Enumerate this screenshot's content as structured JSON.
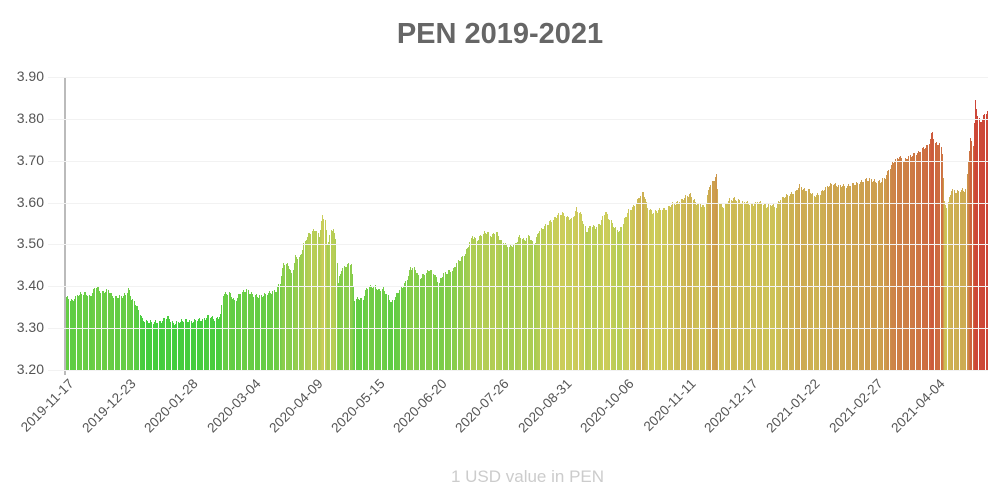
{
  "chart_data": {
    "type": "bar",
    "title": "PEN 2019-2021",
    "xlabel": "1 USD value in PEN",
    "ylabel": "",
    "ylim": [
      3.2,
      3.9
    ],
    "yticks": [
      "3.90",
      "3.80",
      "3.70",
      "3.60",
      "3.50",
      "3.40",
      "3.30",
      "3.20"
    ],
    "xticks": [
      "2019-11-17",
      "2019-12-23",
      "2020-01-28",
      "2020-03-04",
      "2020-04-09",
      "2020-05-15",
      "2020-06-20",
      "2020-07-26",
      "2020-08-31",
      "2020-10-06",
      "2020-11-11",
      "2020-12-17",
      "2021-01-22",
      "2021-02-27",
      "2021-04-04"
    ],
    "grid": true,
    "legend": "none",
    "color_scale": {
      "low": "#33cc33",
      "mid": "#cccc55",
      "high": "#cc3333"
    },
    "x_start": "2019-11-17",
    "x_end": "2021-04-30",
    "keypoints": [
      [
        0,
        3.375
      ],
      [
        5,
        3.365
      ],
      [
        10,
        3.38
      ],
      [
        15,
        3.385
      ],
      [
        20,
        3.375
      ],
      [
        25,
        3.4
      ],
      [
        30,
        3.385
      ],
      [
        35,
        3.39
      ],
      [
        40,
        3.375
      ],
      [
        45,
        3.375
      ],
      [
        50,
        3.38
      ],
      [
        52,
        3.395
      ],
      [
        55,
        3.37
      ],
      [
        60,
        3.35
      ],
      [
        64,
        3.32
      ],
      [
        68,
        3.315
      ],
      [
        80,
        3.315
      ],
      [
        85,
        3.33
      ],
      [
        90,
        3.31
      ],
      [
        95,
        3.315
      ],
      [
        100,
        3.32
      ],
      [
        105,
        3.315
      ],
      [
        110,
        3.32
      ],
      [
        115,
        3.32
      ],
      [
        120,
        3.33
      ],
      [
        125,
        3.32
      ],
      [
        130,
        3.33
      ],
      [
        132,
        3.38
      ],
      [
        137,
        3.385
      ],
      [
        142,
        3.365
      ],
      [
        147,
        3.385
      ],
      [
        152,
        3.39
      ],
      [
        157,
        3.38
      ],
      [
        162,
        3.375
      ],
      [
        167,
        3.38
      ],
      [
        172,
        3.385
      ],
      [
        177,
        3.39
      ],
      [
        180,
        3.41
      ],
      [
        183,
        3.455
      ],
      [
        187,
        3.45
      ],
      [
        190,
        3.43
      ],
      [
        193,
        3.47
      ],
      [
        197,
        3.47
      ],
      [
        200,
        3.5
      ],
      [
        203,
        3.52
      ],
      [
        206,
        3.53
      ],
      [
        210,
        3.535
      ],
      [
        213,
        3.52
      ],
      [
        216,
        3.57
      ],
      [
        218,
        3.56
      ],
      [
        220,
        3.5
      ],
      [
        223,
        3.53
      ],
      [
        225,
        3.54
      ],
      [
        227,
        3.51
      ],
      [
        229,
        3.41
      ],
      [
        232,
        3.44
      ],
      [
        236,
        3.45
      ],
      [
        240,
        3.455
      ],
      [
        243,
        3.37
      ],
      [
        247,
        3.37
      ],
      [
        250,
        3.37
      ],
      [
        253,
        3.395
      ],
      [
        256,
        3.4
      ],
      [
        260,
        3.4
      ],
      [
        263,
        3.39
      ],
      [
        267,
        3.395
      ],
      [
        270,
        3.38
      ],
      [
        274,
        3.36
      ],
      [
        278,
        3.38
      ],
      [
        282,
        3.395
      ],
      [
        286,
        3.41
      ],
      [
        290,
        3.445
      ],
      [
        294,
        3.44
      ],
      [
        298,
        3.42
      ],
      [
        302,
        3.43
      ],
      [
        306,
        3.44
      ],
      [
        310,
        3.43
      ],
      [
        314,
        3.41
      ],
      [
        318,
        3.43
      ],
      [
        322,
        3.435
      ],
      [
        326,
        3.44
      ],
      [
        330,
        3.46
      ],
      [
        334,
        3.47
      ],
      [
        338,
        3.49
      ],
      [
        342,
        3.52
      ],
      [
        346,
        3.51
      ],
      [
        350,
        3.525
      ],
      [
        354,
        3.53
      ],
      [
        358,
        3.52
      ],
      [
        362,
        3.53
      ],
      [
        366,
        3.51
      ],
      [
        370,
        3.5
      ],
      [
        374,
        3.495
      ],
      [
        378,
        3.5
      ],
      [
        382,
        3.52
      ],
      [
        386,
        3.51
      ],
      [
        390,
        3.52
      ],
      [
        394,
        3.5
      ],
      [
        398,
        3.53
      ],
      [
        402,
        3.54
      ],
      [
        406,
        3.55
      ],
      [
        410,
        3.56
      ],
      [
        414,
        3.57
      ],
      [
        418,
        3.575
      ],
      [
        422,
        3.565
      ],
      [
        426,
        3.56
      ],
      [
        430,
        3.585
      ],
      [
        434,
        3.57
      ],
      [
        438,
        3.53
      ],
      [
        442,
        3.545
      ],
      [
        446,
        3.54
      ],
      [
        450,
        3.55
      ],
      [
        454,
        3.58
      ],
      [
        458,
        3.56
      ],
      [
        462,
        3.54
      ],
      [
        466,
        3.53
      ],
      [
        470,
        3.56
      ],
      [
        474,
        3.58
      ],
      [
        478,
        3.59
      ],
      [
        482,
        3.61
      ],
      [
        486,
        3.625
      ],
      [
        490,
        3.59
      ],
      [
        494,
        3.575
      ],
      [
        498,
        3.58
      ],
      [
        502,
        3.585
      ],
      [
        506,
        3.585
      ],
      [
        510,
        3.595
      ],
      [
        514,
        3.6
      ],
      [
        518,
        3.605
      ],
      [
        522,
        3.615
      ],
      [
        526,
        3.62
      ],
      [
        530,
        3.6
      ],
      [
        534,
        3.595
      ],
      [
        538,
        3.59
      ],
      [
        542,
        3.64
      ],
      [
        546,
        3.655
      ],
      [
        548,
        3.665
      ],
      [
        550,
        3.6
      ],
      [
        554,
        3.59
      ],
      [
        558,
        3.605
      ],
      [
        562,
        3.61
      ],
      [
        566,
        3.605
      ],
      [
        570,
        3.6
      ],
      [
        574,
        3.6
      ],
      [
        578,
        3.595
      ],
      [
        582,
        3.6
      ],
      [
        586,
        3.6
      ],
      [
        590,
        3.59
      ],
      [
        594,
        3.595
      ],
      [
        598,
        3.59
      ],
      [
        602,
        3.61
      ],
      [
        606,
        3.615
      ],
      [
        610,
        3.62
      ],
      [
        614,
        3.625
      ],
      [
        618,
        3.64
      ],
      [
        622,
        3.63
      ],
      [
        626,
        3.63
      ],
      [
        630,
        3.615
      ],
      [
        634,
        3.62
      ],
      [
        638,
        3.63
      ],
      [
        642,
        3.64
      ],
      [
        646,
        3.645
      ],
      [
        650,
        3.64
      ],
      [
        654,
        3.64
      ],
      [
        658,
        3.64
      ],
      [
        662,
        3.645
      ],
      [
        666,
        3.645
      ],
      [
        670,
        3.65
      ],
      [
        674,
        3.655
      ],
      [
        678,
        3.655
      ],
      [
        682,
        3.65
      ],
      [
        686,
        3.65
      ],
      [
        690,
        3.66
      ],
      [
        694,
        3.685
      ],
      [
        698,
        3.7
      ],
      [
        702,
        3.71
      ],
      [
        706,
        3.7
      ],
      [
        710,
        3.71
      ],
      [
        714,
        3.715
      ],
      [
        718,
        3.72
      ],
      [
        722,
        3.73
      ],
      [
        726,
        3.735
      ],
      [
        730,
        3.77
      ],
      [
        732,
        3.74
      ],
      [
        736,
        3.74
      ],
      [
        738,
        3.72
      ],
      [
        740,
        3.6
      ],
      [
        742,
        3.59
      ],
      [
        746,
        3.63
      ],
      [
        750,
        3.625
      ],
      [
        754,
        3.63
      ],
      [
        758,
        3.63
      ],
      [
        760,
        3.7
      ],
      [
        762,
        3.75
      ],
      [
        764,
        3.74
      ],
      [
        766,
        3.84
      ],
      [
        768,
        3.81
      ],
      [
        770,
        3.79
      ],
      [
        772,
        3.8
      ],
      [
        774,
        3.81
      ],
      [
        776,
        3.82
      ]
    ],
    "total_points": 777
  }
}
